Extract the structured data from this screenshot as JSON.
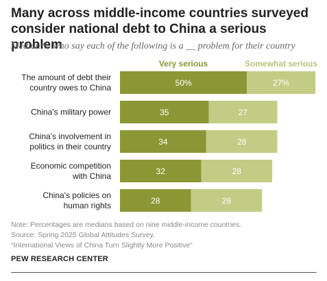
{
  "title": "Many across middle-income countries surveyed consider national debt to China a serious problem",
  "subtitle": "Median % who say each of the following is a __ problem for their country",
  "chart_data": {
    "type": "bar",
    "orientation": "horizontal",
    "stacked": true,
    "categories": [
      [
        "The amount of debt their",
        "country owes to China"
      ],
      [
        "China's military power"
      ],
      [
        "China's involvement in",
        "politics in their country"
      ],
      [
        "Economic competition",
        "with China"
      ],
      [
        "China's policies on",
        "human rights"
      ]
    ],
    "series": [
      {
        "name": "Very serious",
        "color": "#8b9734",
        "values": [
          50,
          35,
          34,
          32,
          28
        ],
        "labels": [
          "50%",
          "35",
          "34",
          "32",
          "28"
        ]
      },
      {
        "name": "Somewhat serious",
        "color": "#c3cc85",
        "values": [
          27,
          27,
          28,
          28,
          28
        ],
        "labels": [
          "27%",
          "27",
          "28",
          "28",
          "28"
        ]
      }
    ],
    "legend_colors": [
      "#8b9734",
      "#b9c27a"
    ],
    "label_color": "#ffffff",
    "xlim": [
      0,
      77
    ],
    "grid": false,
    "legend_position": "top"
  },
  "notes": [
    "Note: Percentages are medians based on nine middle-income countries.",
    "Source: Spring 2025 Global Attitudes Survey.",
    "“International Views of China Turn Slightly More Positive”"
  ],
  "brand": "PEW RESEARCH CENTER"
}
